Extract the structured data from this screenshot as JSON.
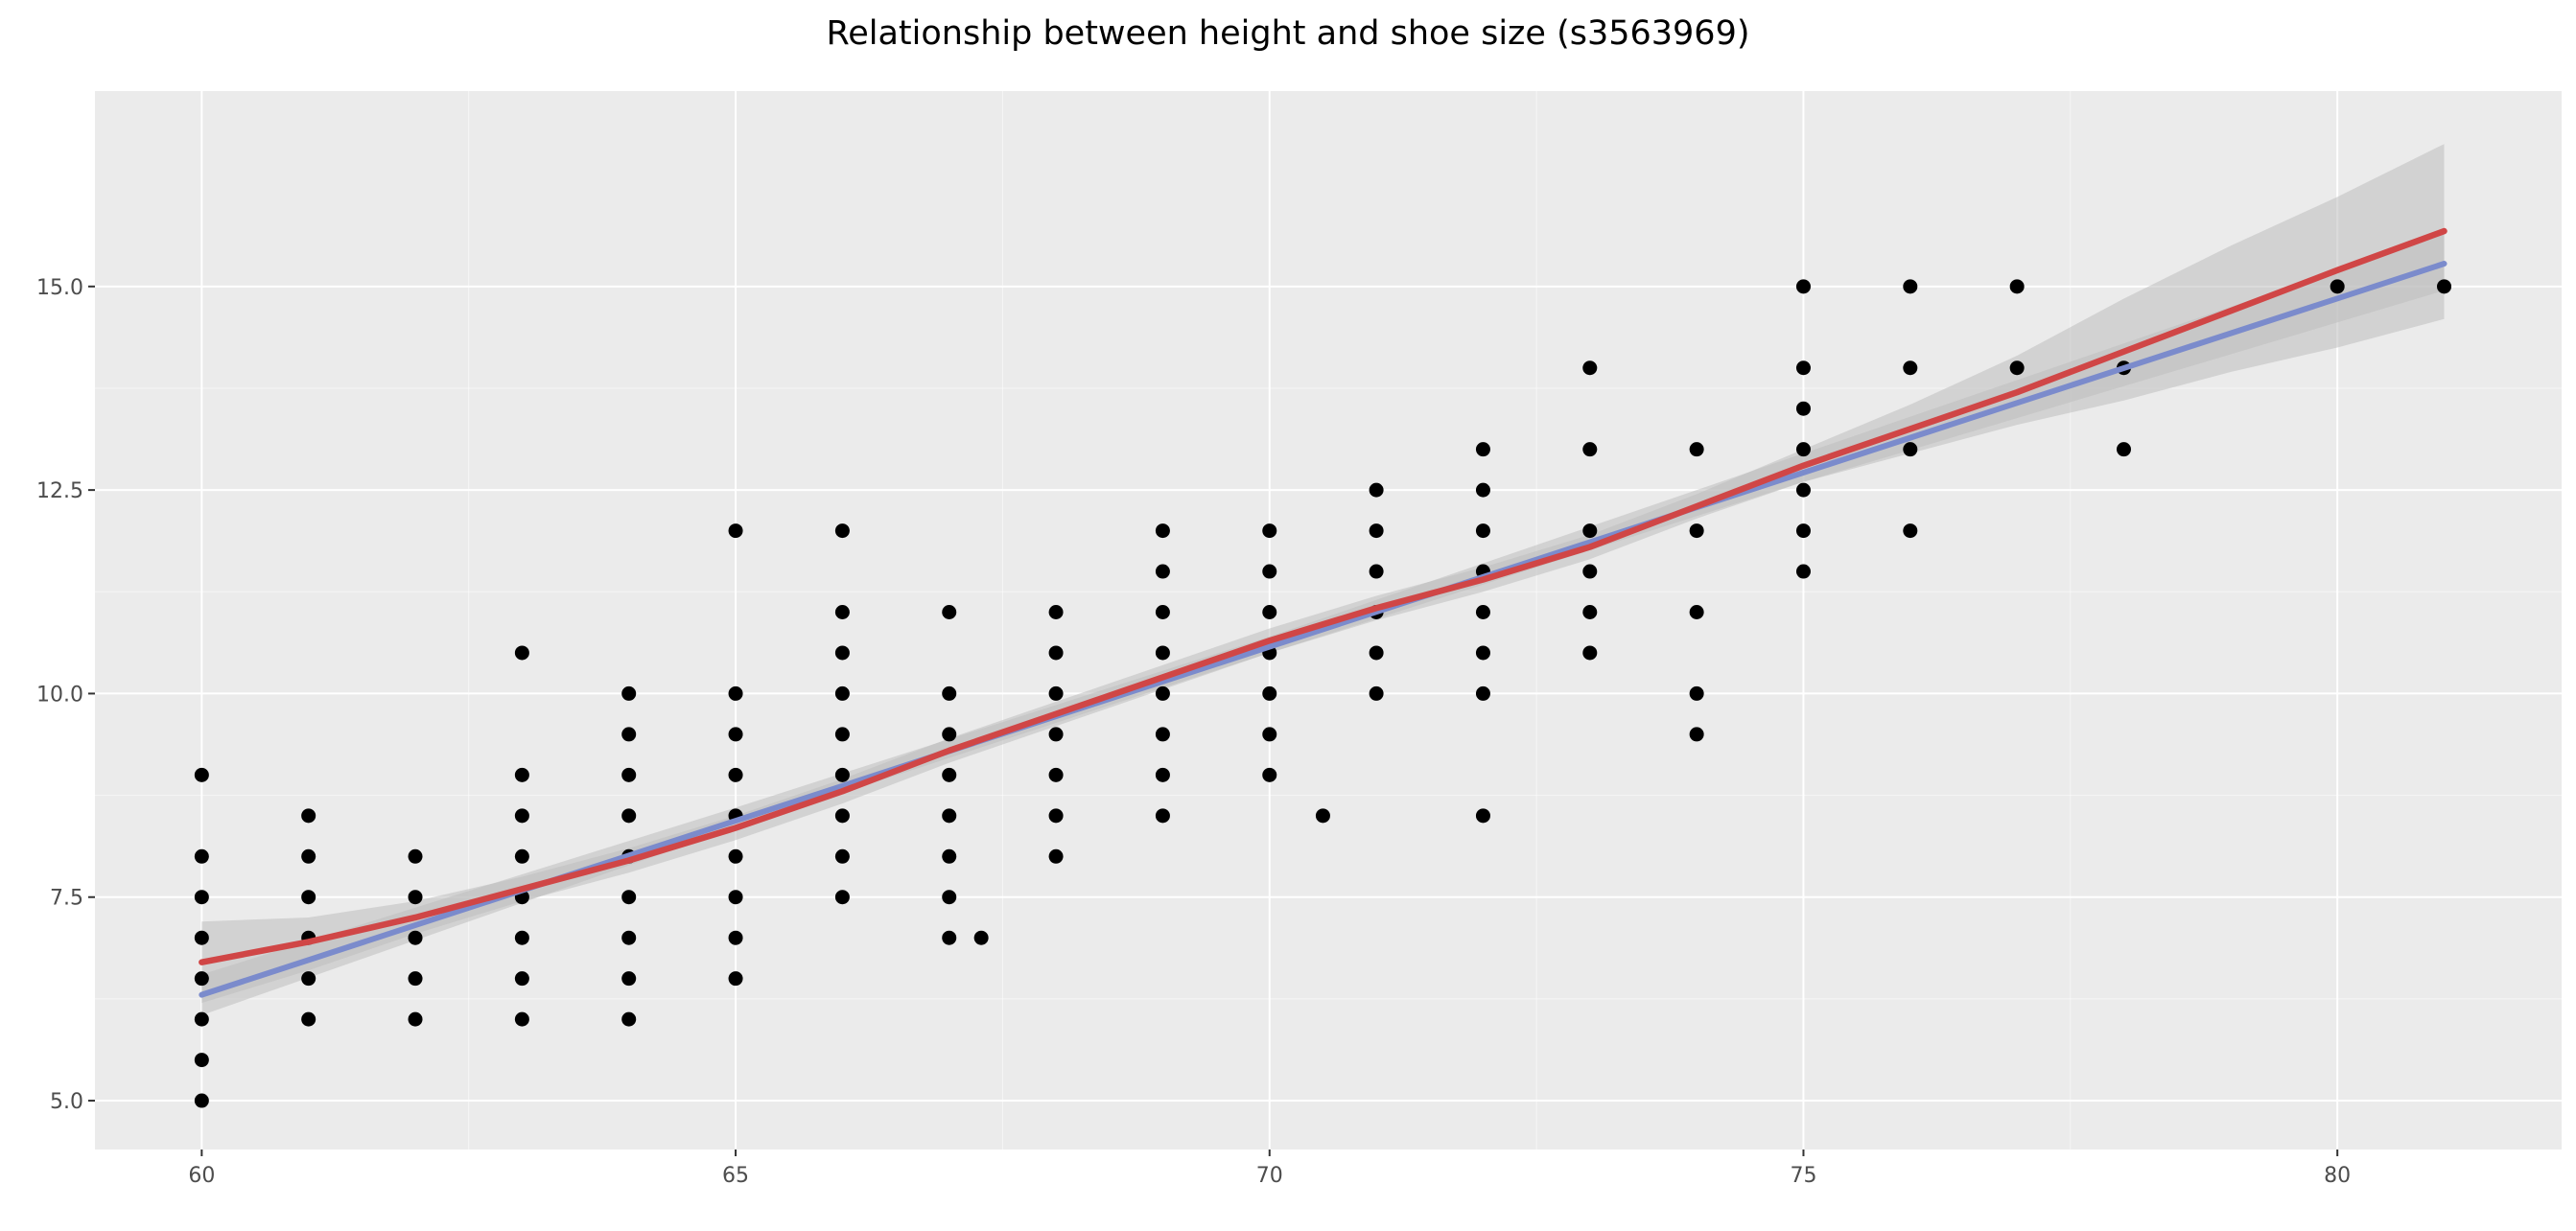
{
  "chart_data": {
    "type": "scatter",
    "title": "Relationship between height and shoe size (s3563969)",
    "xlabel": "",
    "ylabel": "",
    "xlim": [
      59,
      82.1
    ],
    "ylim": [
      4.4,
      17.4
    ],
    "x_ticks": [
      60,
      65,
      70,
      75,
      80
    ],
    "y_ticks": [
      5.0,
      7.5,
      10.0,
      12.5,
      15.0
    ],
    "x_tick_labels": [
      "60",
      "65",
      "70",
      "75",
      "80"
    ],
    "y_tick_labels": [
      "5.0",
      "7.5",
      "10.0",
      "12.5",
      "15.0"
    ],
    "grid": true,
    "legend": "none",
    "colors": {
      "panel": "#ebebeb",
      "grid": "#ffffff",
      "points": "#000000",
      "ribbon": "#bdbdbd",
      "linear_fit": "#7b8bcc",
      "loess_fit": "#d04646"
    },
    "points": [
      [
        60,
        5.0
      ],
      [
        60,
        5.5
      ],
      [
        60,
        6.0
      ],
      [
        60,
        6.5
      ],
      [
        60,
        7.0
      ],
      [
        60,
        7.5
      ],
      [
        60,
        8.0
      ],
      [
        60,
        9.0
      ],
      [
        61,
        6.0
      ],
      [
        61,
        6.5
      ],
      [
        61,
        7.0
      ],
      [
        61,
        7.5
      ],
      [
        61,
        8.0
      ],
      [
        61,
        8.5
      ],
      [
        62,
        6.0
      ],
      [
        62,
        6.5
      ],
      [
        62,
        7.0
      ],
      [
        62,
        7.5
      ],
      [
        62,
        8.0
      ],
      [
        63,
        6.0
      ],
      [
        63,
        6.5
      ],
      [
        63,
        7.0
      ],
      [
        63,
        7.5
      ],
      [
        63,
        8.0
      ],
      [
        63,
        8.5
      ],
      [
        63,
        9.0
      ],
      [
        63,
        10.5
      ],
      [
        64,
        6.0
      ],
      [
        64,
        6.5
      ],
      [
        64,
        7.0
      ],
      [
        64,
        7.5
      ],
      [
        64,
        8.0
      ],
      [
        64,
        8.5
      ],
      [
        64,
        9.0
      ],
      [
        64,
        9.5
      ],
      [
        64,
        10.0
      ],
      [
        65,
        6.5
      ],
      [
        65,
        7.0
      ],
      [
        65,
        7.5
      ],
      [
        65,
        8.0
      ],
      [
        65,
        8.5
      ],
      [
        65,
        9.0
      ],
      [
        65,
        9.5
      ],
      [
        65,
        10.0
      ],
      [
        65,
        12.0
      ],
      [
        66,
        7.5
      ],
      [
        66,
        8.0
      ],
      [
        66,
        8.5
      ],
      [
        66,
        9.0
      ],
      [
        66,
        9.5
      ],
      [
        66,
        10.0
      ],
      [
        66,
        10.5
      ],
      [
        66,
        11.0
      ],
      [
        66,
        12.0
      ],
      [
        67,
        7.0
      ],
      [
        67,
        7.5
      ],
      [
        67,
        8.0
      ],
      [
        67,
        8.5
      ],
      [
        67,
        9.0
      ],
      [
        67,
        9.5
      ],
      [
        67,
        10.0
      ],
      [
        67,
        11.0
      ],
      [
        67.3,
        7.0
      ],
      [
        68,
        8.0
      ],
      [
        68,
        8.5
      ],
      [
        68,
        9.0
      ],
      [
        68,
        9.5
      ],
      [
        68,
        10.0
      ],
      [
        68,
        10.5
      ],
      [
        68,
        11.0
      ],
      [
        69,
        8.5
      ],
      [
        69,
        9.0
      ],
      [
        69,
        9.5
      ],
      [
        69,
        10.0
      ],
      [
        69,
        10.5
      ],
      [
        69,
        11.0
      ],
      [
        69,
        11.5
      ],
      [
        69,
        12.0
      ],
      [
        70,
        9.0
      ],
      [
        70,
        9.5
      ],
      [
        70,
        10.0
      ],
      [
        70,
        10.5
      ],
      [
        70,
        11.0
      ],
      [
        70,
        11.5
      ],
      [
        70,
        12.0
      ],
      [
        70.5,
        8.5
      ],
      [
        71,
        10.0
      ],
      [
        71,
        10.5
      ],
      [
        71,
        11.0
      ],
      [
        71,
        11.5
      ],
      [
        71,
        12.0
      ],
      [
        71,
        12.5
      ],
      [
        72,
        8.5
      ],
      [
        72,
        10.0
      ],
      [
        72,
        10.5
      ],
      [
        72,
        11.0
      ],
      [
        72,
        11.5
      ],
      [
        72,
        12.0
      ],
      [
        72,
        12.5
      ],
      [
        72,
        13.0
      ],
      [
        73,
        10.5
      ],
      [
        73,
        11.0
      ],
      [
        73,
        11.5
      ],
      [
        73,
        12.0
      ],
      [
        73,
        13.0
      ],
      [
        73,
        14.0
      ],
      [
        74,
        9.5
      ],
      [
        74,
        10.0
      ],
      [
        74,
        11.0
      ],
      [
        74,
        12.0
      ],
      [
        74,
        13.0
      ],
      [
        75,
        11.5
      ],
      [
        75,
        12.0
      ],
      [
        75,
        12.5
      ],
      [
        75,
        13.0
      ],
      [
        75,
        13.5
      ],
      [
        75,
        14.0
      ],
      [
        75,
        15.0
      ],
      [
        76,
        12.0
      ],
      [
        76,
        13.0
      ],
      [
        76,
        14.0
      ],
      [
        76,
        15.0
      ],
      [
        77,
        14.0
      ],
      [
        77,
        15.0
      ],
      [
        78,
        13.0
      ],
      [
        78,
        14.0
      ],
      [
        80,
        15.0
      ],
      [
        81,
        15.0
      ]
    ],
    "linear_fit": {
      "x": [
        60,
        81
      ],
      "y": [
        6.3,
        15.28
      ],
      "band": [
        [
          60,
          6.05,
          6.55
        ],
        [
          65,
          8.35,
          8.6
        ],
        [
          70,
          10.5,
          10.7
        ],
        [
          75,
          12.6,
          12.95
        ],
        [
          81,
          14.95,
          15.65
        ]
      ]
    },
    "loess_fit": {
      "x": [
        60,
        61,
        62,
        63,
        64,
        65,
        66,
        67,
        68,
        69,
        70,
        71,
        72,
        73,
        74,
        75,
        76,
        77,
        78,
        79,
        80,
        81
      ],
      "y": [
        6.7,
        6.95,
        7.25,
        7.6,
        7.95,
        8.35,
        8.8,
        9.3,
        9.75,
        10.2,
        10.65,
        11.05,
        11.4,
        11.8,
        12.3,
        12.8,
        13.25,
        13.7,
        14.2,
        14.7,
        15.2,
        15.68
      ],
      "band": [
        [
          60,
          6.2,
          7.2
        ],
        [
          61,
          6.6,
          7.25
        ],
        [
          62,
          7.05,
          7.45
        ],
        [
          63,
          7.45,
          7.75
        ],
        [
          64,
          7.8,
          8.1
        ],
        [
          65,
          8.2,
          8.5
        ],
        [
          66,
          8.65,
          8.95
        ],
        [
          67,
          9.15,
          9.45
        ],
        [
          68,
          9.6,
          9.9
        ],
        [
          69,
          10.05,
          10.35
        ],
        [
          70,
          10.5,
          10.8
        ],
        [
          71,
          10.9,
          11.2
        ],
        [
          72,
          11.25,
          11.55
        ],
        [
          73,
          11.65,
          11.95
        ],
        [
          74,
          12.15,
          12.45
        ],
        [
          75,
          12.6,
          13.0
        ],
        [
          76,
          12.95,
          13.55
        ],
        [
          77,
          13.3,
          14.15
        ],
        [
          78,
          13.6,
          14.85
        ],
        [
          79,
          13.95,
          15.5
        ],
        [
          80,
          14.25,
          16.1
        ],
        [
          81,
          14.6,
          16.75
        ]
      ]
    }
  }
}
